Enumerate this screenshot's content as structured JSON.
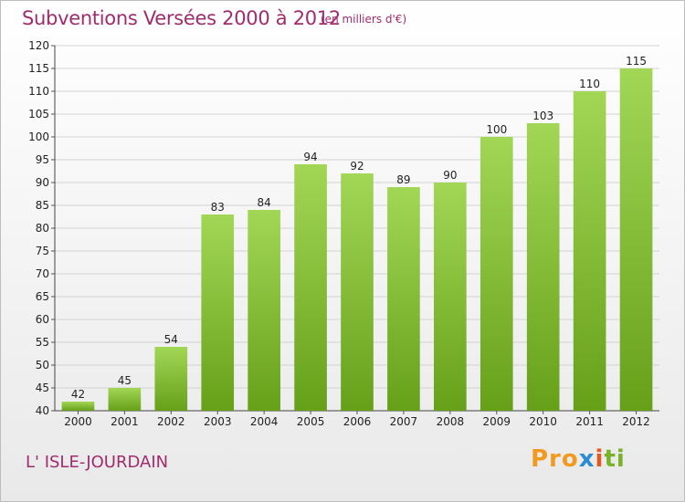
{
  "header": {
    "title": "Subventions Versées 2000 à 2012",
    "subtitle": "(en milliers d'€)"
  },
  "footer": {
    "place": "L' ISLE-JOURDAIN",
    "logo_parts": [
      "Pro",
      "x",
      "i",
      "ti"
    ]
  },
  "colors": {
    "title": "#a02c6e",
    "bar_light": "#a2d756",
    "bar_dark": "#66a019",
    "grid": "#d2d2d2"
  },
  "chart_data": {
    "type": "bar",
    "title": "Subventions Versées 2000 à 2012",
    "subtitle": "(en milliers d'€)",
    "xlabel": "",
    "ylabel": "",
    "categories": [
      "2000",
      "2001",
      "2002",
      "2003",
      "2004",
      "2005",
      "2006",
      "2007",
      "2008",
      "2009",
      "2010",
      "2011",
      "2012"
    ],
    "values": [
      42,
      45,
      54,
      83,
      84,
      94,
      92,
      89,
      90,
      100,
      103,
      110,
      115
    ],
    "ylim": [
      40,
      120
    ],
    "yticks": [
      40,
      45,
      50,
      55,
      60,
      65,
      70,
      75,
      80,
      85,
      90,
      95,
      100,
      105,
      110,
      115,
      120
    ],
    "grid": true,
    "data_labels": true
  }
}
